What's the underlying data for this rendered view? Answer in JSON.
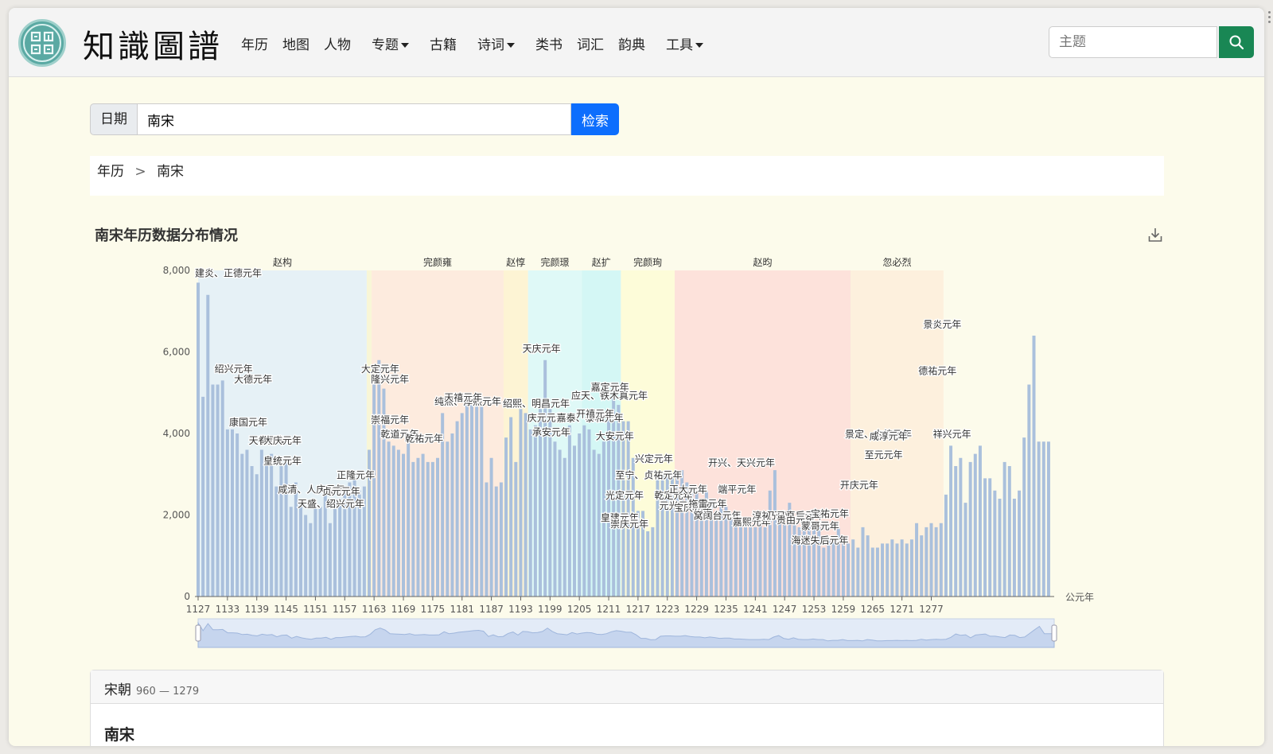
{
  "nav": {
    "logo": "知識圖譜",
    "items": [
      {
        "label": "年历",
        "dropdown": false
      },
      {
        "label": "地图",
        "dropdown": false
      },
      {
        "label": "人物",
        "dropdown": false
      },
      {
        "label": "专题",
        "dropdown": true
      },
      {
        "label": "古籍",
        "dropdown": false
      },
      {
        "label": "诗词",
        "dropdown": true
      },
      {
        "label": "类书",
        "dropdown": false
      },
      {
        "label": "词汇",
        "dropdown": false
      },
      {
        "label": "韵典",
        "dropdown": false
      },
      {
        "label": "工具",
        "dropdown": true
      }
    ],
    "search_placeholder": "主题"
  },
  "search": {
    "label": "日期",
    "value": "南宋",
    "button": "检索"
  },
  "breadcrumb": {
    "root": "年历",
    "sep": ">",
    "current": "南宋"
  },
  "chart_data": {
    "type": "bar",
    "title": "南宋年历数据分布情况",
    "xlabel": "公元年",
    "ylim": [
      0,
      8000
    ],
    "yticks": [
      "0",
      "2,000",
      "4,000",
      "6,000",
      "8,000"
    ],
    "x_start": 1127,
    "xticks": [
      "1127",
      "1133",
      "1139",
      "1145",
      "1151",
      "1157",
      "1163",
      "1169",
      "1175",
      "1181",
      "1187",
      "1193",
      "1199",
      "1205",
      "1211",
      "1217",
      "1223",
      "1229",
      "1235",
      "1241",
      "1247",
      "1253",
      "1259",
      "1265",
      "1271",
      "1277"
    ],
    "values": [
      7700,
      4900,
      7400,
      5200,
      5200,
      5300,
      4100,
      4100,
      4000,
      3500,
      3600,
      3200,
      3000,
      3600,
      3300,
      3500,
      2700,
      3200,
      3300,
      2200,
      2800,
      2300,
      2000,
      1800,
      2200,
      2200,
      2500,
      1800,
      2400,
      2400,
      2600,
      2800,
      2900,
      2600,
      2700,
      3600,
      5200,
      5800,
      5100,
      3800,
      3700,
      3600,
      3500,
      3800,
      3300,
      3400,
      3500,
      3300,
      3300,
      3400,
      4500,
      3800,
      4000,
      4300,
      4500,
      4700,
      4900,
      5000,
      4700,
      2800,
      3400,
      2700,
      2800,
      3900,
      4400,
      3300,
      4600,
      4500,
      4100,
      4200,
      4600,
      5800,
      4600,
      3800,
      3600,
      3400,
      4200,
      3700,
      4000,
      4200,
      4100,
      3600,
      3500,
      3800,
      4500,
      4900,
      4700,
      4300,
      4300,
      3400,
      2100,
      2100,
      1600,
      1700,
      2900,
      3000,
      3000,
      2900,
      2900,
      3100,
      2800,
      2600,
      2600,
      2300,
      2600,
      2400,
      2100,
      2200,
      2200,
      1900,
      1900,
      1800,
      1700,
      1700,
      1700,
      1800,
      1700,
      2600,
      3100,
      2100,
      1800,
      2300,
      1800,
      1700,
      1700,
      1900,
      1700,
      1700,
      1200,
      1400,
      1400,
      1700,
      1300,
      1300,
      1400,
      1200,
      1700,
      1500,
      1200,
      1200,
      1300,
      1300,
      1400,
      1300,
      1400,
      1300,
      1400,
      1800,
      1500,
      1700,
      1800,
      1700,
      1800,
      2500,
      3700,
      3200,
      3400,
      2300,
      3300,
      3500,
      3700,
      2900,
      2900,
      2600,
      2400,
      3300,
      3200,
      2400,
      2600,
      3900,
      5200,
      6400,
      3800,
      3800,
      3800
    ],
    "emperor_bands": [
      {
        "name": "赵构",
        "start": 1127,
        "end": 1162,
        "color": "#dfeefa"
      },
      {
        "name": "",
        "start": 1162,
        "end": 1163,
        "color": "#f7f4d0"
      },
      {
        "name": "完颜雍",
        "start": 1163,
        "end": 1190,
        "color": "#fde6d9"
      },
      {
        "name": "赵惇",
        "start": 1190,
        "end": 1195,
        "color": "#fdf1cc"
      },
      {
        "name": "完颜璟",
        "start": 1195,
        "end": 1206,
        "color": "#d6f8fb"
      },
      {
        "name": "赵扩",
        "start": 1206,
        "end": 1214,
        "color": "#c7f6f8"
      },
      {
        "name": "完颜珣",
        "start": 1214,
        "end": 1225,
        "color": "#fefcd3"
      },
      {
        "name": "赵昀",
        "start": 1225,
        "end": 1261,
        "color": "#fdd9d6"
      },
      {
        "name": "忽必烈",
        "start": 1261,
        "end": 1280,
        "color": "#fdecd8"
      }
    ],
    "annotations": [
      {
        "text": "建炎、正德元年",
        "year": 1127,
        "value": 7850
      },
      {
        "text": "绍兴元年",
        "year": 1131,
        "value": 5500
      },
      {
        "text": "大德元年",
        "year": 1135,
        "value": 5250
      },
      {
        "text": "康国元年",
        "year": 1134,
        "value": 4200
      },
      {
        "text": "天眷元年",
        "year": 1138,
        "value": 3750
      },
      {
        "text": "大庆元年",
        "year": 1141,
        "value": 3750
      },
      {
        "text": "皇统元年",
        "year": 1141,
        "value": 3250
      },
      {
        "text": "咸清、人庆元年",
        "year": 1144,
        "value": 2550
      },
      {
        "text": "贞元元年",
        "year": 1153,
        "value": 2500
      },
      {
        "text": "天盛、绍兴元年",
        "year": 1148,
        "value": 2200
      },
      {
        "text": "正隆元年",
        "year": 1156,
        "value": 2900
      },
      {
        "text": "大定元年",
        "year": 1161,
        "value": 5500
      },
      {
        "text": "隆兴元年",
        "year": 1163,
        "value": 5250
      },
      {
        "text": "崇福元年",
        "year": 1163,
        "value": 4250
      },
      {
        "text": "乾道元年",
        "year": 1165,
        "value": 3900
      },
      {
        "text": "乾祐元年",
        "year": 1170,
        "value": 3800
      },
      {
        "text": "纯熙、淳熙元年",
        "year": 1176,
        "value": 4700
      },
      {
        "text": "天禧元年",
        "year": 1178,
        "value": 4800
      },
      {
        "text": "绍熙、明昌元年",
        "year": 1190,
        "value": 4650
      },
      {
        "text": "天庆元年",
        "year": 1194,
        "value": 6000
      },
      {
        "text": "庆元元年",
        "year": 1195,
        "value": 4300
      },
      {
        "text": "承安元年",
        "year": 1196,
        "value": 3950
      },
      {
        "text": "嘉泰、泰和元年",
        "year": 1201,
        "value": 4300
      },
      {
        "text": "应天、铁木真元年",
        "year": 1204,
        "value": 4850
      },
      {
        "text": "开禧元年",
        "year": 1205,
        "value": 4400
      },
      {
        "text": "嘉定元年",
        "year": 1208,
        "value": 5050
      },
      {
        "text": "大安元年",
        "year": 1209,
        "value": 3850
      },
      {
        "text": "至宁、贞祐元年",
        "year": 1213,
        "value": 2900
      },
      {
        "text": "兴定元年",
        "year": 1217,
        "value": 3300
      },
      {
        "text": "光定元年",
        "year": 1211,
        "value": 2400
      },
      {
        "text": "皇建元年",
        "year": 1210,
        "value": 1850
      },
      {
        "text": "崇庆元年",
        "year": 1212,
        "value": 1700
      },
      {
        "text": "乾定元年",
        "year": 1221,
        "value": 2400
      },
      {
        "text": "元光元年",
        "year": 1222,
        "value": 2150
      },
      {
        "text": "正大元年",
        "year": 1224,
        "value": 2550
      },
      {
        "text": "宝庆元年",
        "year": 1225,
        "value": 2100
      },
      {
        "text": "拖雷元年",
        "year": 1228,
        "value": 2200
      },
      {
        "text": "窝阔台元年",
        "year": 1229,
        "value": 1900
      },
      {
        "text": "开兴、天兴元年",
        "year": 1232,
        "value": 3200
      },
      {
        "text": "端平元年",
        "year": 1234,
        "value": 2550
      },
      {
        "text": "嘉熙元年",
        "year": 1237,
        "value": 1750
      },
      {
        "text": "淳祐元年",
        "year": 1241,
        "value": 1900
      },
      {
        "text": "乃马真后元年",
        "year": 1244,
        "value": 1900
      },
      {
        "text": "贵由元年",
        "year": 1246,
        "value": 1800
      },
      {
        "text": "海迷失后元年",
        "year": 1249,
        "value": 1300
      },
      {
        "text": "蒙哥元年",
        "year": 1251,
        "value": 1650
      },
      {
        "text": "宝祐元年",
        "year": 1253,
        "value": 1950
      },
      {
        "text": "开庆元年",
        "year": 1259,
        "value": 2650
      },
      {
        "text": "景定、中统元年",
        "year": 1260,
        "value": 3900
      },
      {
        "text": "咸淳元年",
        "year": 1265,
        "value": 3850
      },
      {
        "text": "至元元年",
        "year": 1264,
        "value": 3400
      },
      {
        "text": "德祐元年",
        "year": 1275,
        "value": 5450
      },
      {
        "text": "景炎元年",
        "year": 1276,
        "value": 6600
      },
      {
        "text": "祥兴元年",
        "year": 1278,
        "value": 3900
      }
    ]
  },
  "card": {
    "title": "宋朝",
    "range": "960 — 1279",
    "body_title": "南宋"
  }
}
